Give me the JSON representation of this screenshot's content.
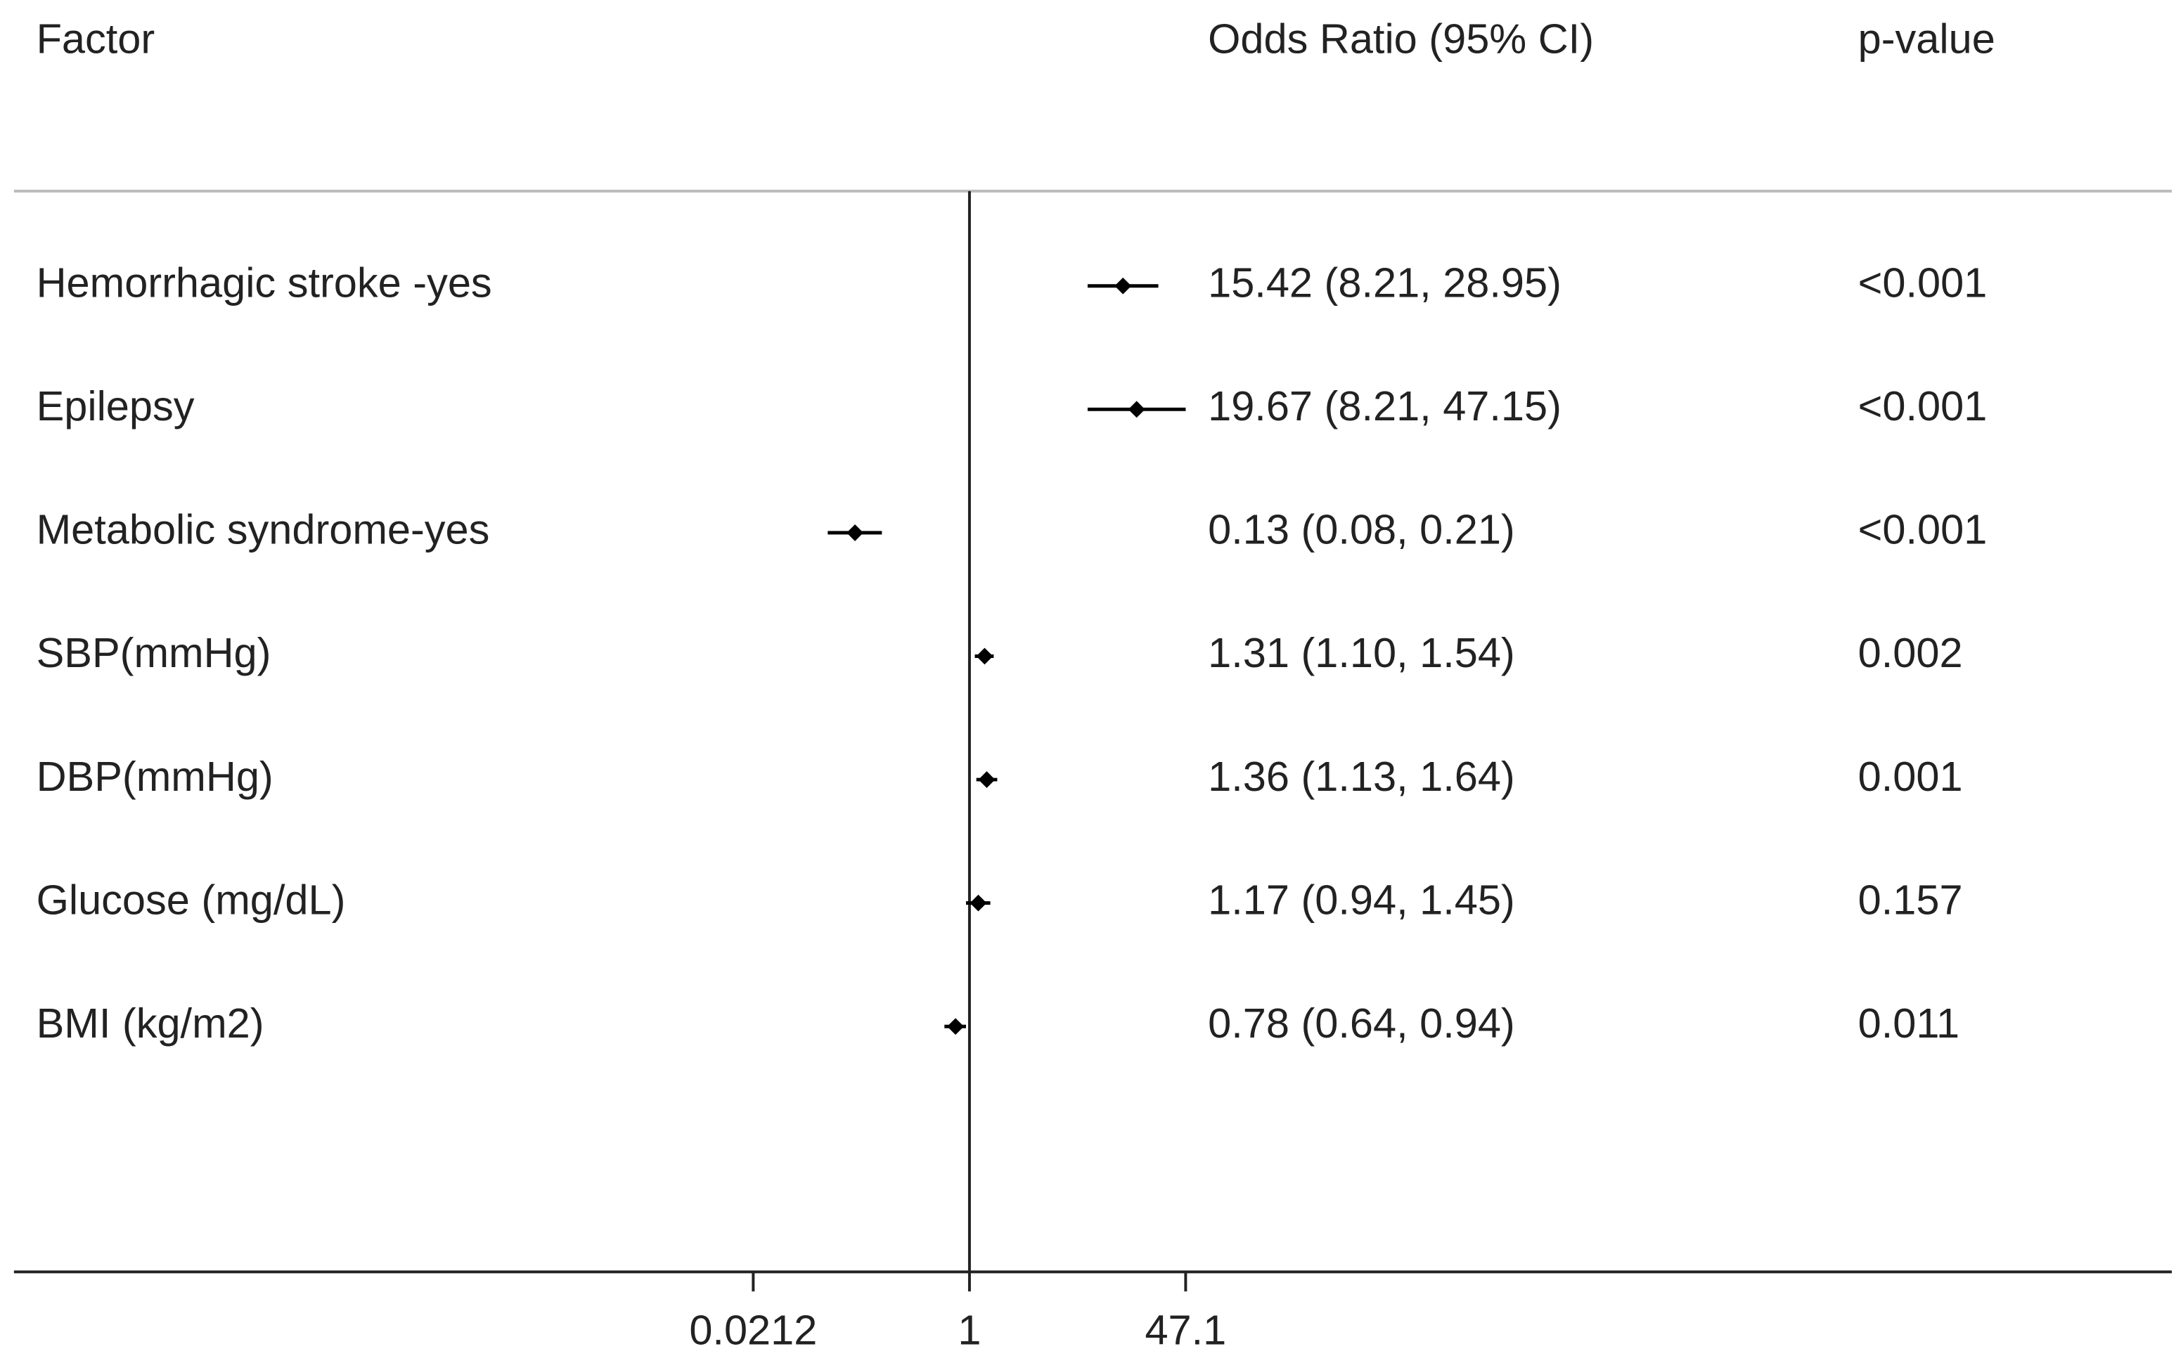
{
  "chart_data": {
    "type": "forest",
    "headers": {
      "factor": "Factor",
      "estimate": "Odds Ratio (95% CI)",
      "p": "p-value"
    },
    "categories": [
      "Hemorrhagic stroke -yes",
      "Epilepsy",
      "Metabolic syndrome-yes",
      "SBP(mmHg)",
      "DBP(mmHg)",
      "Glucose (mg/dL)",
      "BMI (kg/m2)"
    ],
    "values": [
      15.42,
      19.67,
      0.13,
      1.31,
      1.36,
      1.17,
      0.78
    ],
    "lower": [
      8.21,
      8.21,
      0.08,
      1.1,
      1.13,
      0.94,
      0.64
    ],
    "upper": [
      28.95,
      47.15,
      0.21,
      1.54,
      1.64,
      1.45,
      0.94
    ],
    "value_labels": [
      "15.42 (8.21, 28.95)",
      "19.67 (8.21, 47.15)",
      "0.13 (0.08, 0.21)",
      "1.31 (1.10, 1.54)",
      "1.36 (1.13, 1.64)",
      "1.17 (0.94, 1.45)",
      "0.78 (0.64, 0.94)"
    ],
    "p_values": [
      "<0.001",
      "<0.001",
      "<0.001",
      "0.002",
      "0.001",
      "0.157",
      "0.011"
    ],
    "log_x": true,
    "xlim": [
      0.0212,
      47.1
    ],
    "xticks": [
      0.0212,
      1,
      47.1
    ],
    "color": "#000000"
  }
}
